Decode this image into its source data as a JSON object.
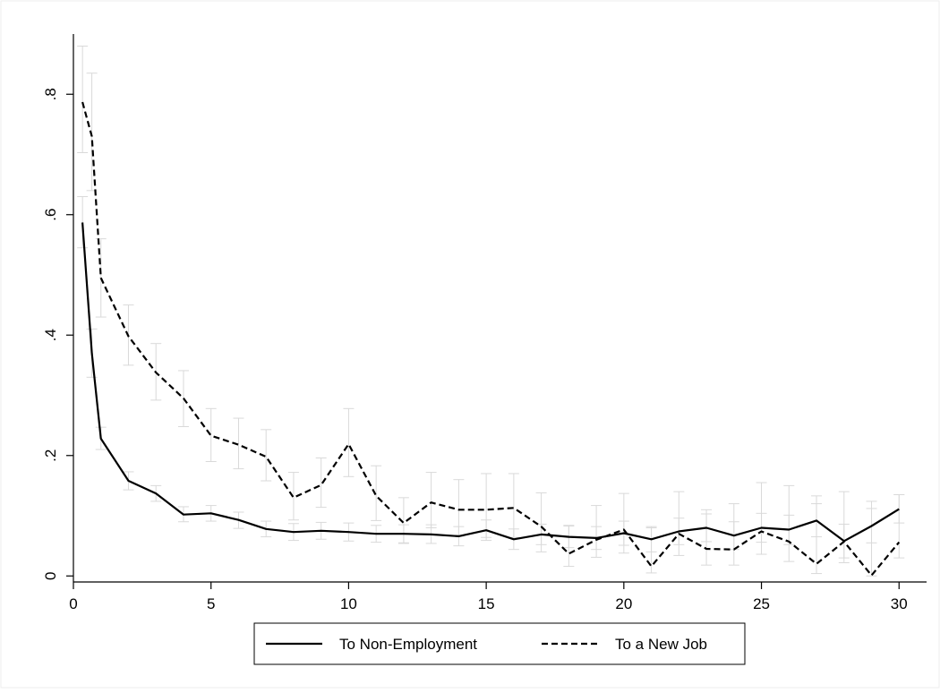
{
  "chart_data": {
    "type": "line",
    "title": "",
    "xlabel": "",
    "ylabel": "",
    "xlim": [
      0,
      31
    ],
    "ylim": [
      -0.01,
      0.9
    ],
    "xticks": [
      0,
      5,
      10,
      15,
      20,
      25,
      30
    ],
    "xtick_labels": [
      "0",
      "5",
      "10",
      "15",
      "20",
      "25",
      "30"
    ],
    "yticks": [
      0,
      0.2,
      0.4,
      0.6,
      0.8
    ],
    "ytick_labels": [
      "0",
      ".2",
      ".4",
      ".6",
      ".8"
    ],
    "grid": false,
    "legend_position": "bottom",
    "series": [
      {
        "name": "To Non-Employment",
        "style": "solid",
        "color": "#000000",
        "x": [
          0.33,
          0.67,
          1,
          2,
          3,
          4,
          5,
          6,
          7,
          8,
          9,
          10,
          11,
          12,
          13,
          14,
          15,
          16,
          17,
          18,
          19,
          20,
          21,
          22,
          23,
          24,
          25,
          26,
          27,
          28,
          29,
          30
        ],
        "y": [
          0.587,
          0.37,
          0.228,
          0.158,
          0.137,
          0.102,
          0.104,
          0.093,
          0.078,
          0.073,
          0.075,
          0.073,
          0.07,
          0.07,
          0.069,
          0.066,
          0.076,
          0.061,
          0.069,
          0.065,
          0.063,
          0.071,
          0.061,
          0.074,
          0.08,
          0.067,
          0.08,
          0.077,
          0.092,
          0.058,
          0.083,
          0.111
        ],
        "ci_low": [
          0.545,
          0.33,
          0.21,
          0.143,
          0.124,
          0.09,
          0.091,
          0.079,
          0.065,
          0.059,
          0.061,
          0.058,
          0.056,
          0.055,
          0.054,
          0.05,
          0.059,
          0.044,
          0.052,
          0.047,
          0.044,
          0.051,
          0.04,
          0.052,
          0.057,
          0.044,
          0.056,
          0.052,
          0.065,
          0.03,
          0.055,
          0.088
        ],
        "ci_high": [
          0.63,
          0.41,
          0.247,
          0.173,
          0.15,
          0.115,
          0.117,
          0.106,
          0.091,
          0.087,
          0.089,
          0.088,
          0.084,
          0.085,
          0.085,
          0.082,
          0.093,
          0.078,
          0.086,
          0.083,
          0.082,
          0.091,
          0.082,
          0.096,
          0.103,
          0.09,
          0.104,
          0.101,
          0.12,
          0.086,
          0.112,
          0.135
        ]
      },
      {
        "name": "To a New Job",
        "style": "dashed",
        "color": "#000000",
        "x": [
          0.33,
          0.67,
          1,
          2,
          3,
          4,
          5,
          6,
          7,
          8,
          9,
          10,
          11,
          12,
          13,
          14,
          15,
          16,
          17,
          18,
          19,
          20,
          21,
          22,
          23,
          24,
          25,
          26,
          27,
          28,
          29,
          30
        ],
        "y": [
          0.787,
          0.73,
          0.495,
          0.398,
          0.338,
          0.295,
          0.233,
          0.218,
          0.198,
          0.13,
          0.151,
          0.219,
          0.133,
          0.088,
          0.122,
          0.11,
          0.11,
          0.113,
          0.082,
          0.037,
          0.06,
          0.077,
          0.016,
          0.07,
          0.045,
          0.044,
          0.074,
          0.057,
          0.02,
          0.057,
          0.001,
          0.056
        ],
        "ci_low": [
          0.703,
          0.64,
          0.43,
          0.35,
          0.292,
          0.248,
          0.19,
          0.178,
          0.158,
          0.093,
          0.114,
          0.165,
          0.092,
          0.054,
          0.08,
          0.066,
          0.064,
          0.064,
          0.04,
          0.016,
          0.031,
          0.038,
          0.005,
          0.034,
          0.018,
          0.018,
          0.036,
          0.024,
          0.004,
          0.022,
          0.0,
          0.03
        ],
        "ci_high": [
          0.88,
          0.835,
          0.56,
          0.45,
          0.386,
          0.341,
          0.278,
          0.262,
          0.243,
          0.172,
          0.196,
          0.278,
          0.183,
          0.13,
          0.172,
          0.16,
          0.17,
          0.17,
          0.138,
          0.084,
          0.117,
          0.137,
          0.08,
          0.14,
          0.11,
          0.12,
          0.155,
          0.15,
          0.133,
          0.14,
          0.124,
          0.135
        ]
      }
    ]
  },
  "colors": {
    "background": "#ffffff",
    "axis": "#000000",
    "errorbar": "#d9d9d9",
    "frame": "#e6e6e6"
  }
}
